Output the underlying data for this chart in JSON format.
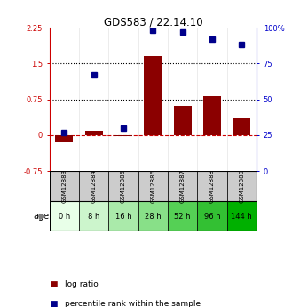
{
  "title": "GDS583 / 22.14.10",
  "samples": [
    "GSM12883",
    "GSM12884",
    "GSM12885",
    "GSM12886",
    "GSM12887",
    "GSM12888",
    "GSM12889"
  ],
  "ages": [
    "0 h",
    "8 h",
    "16 h",
    "28 h",
    "52 h",
    "96 h",
    "144 h"
  ],
  "log_ratio": [
    -0.15,
    0.1,
    -0.02,
    1.65,
    0.62,
    0.82,
    0.35
  ],
  "percentile_rank": [
    27,
    67,
    30,
    98,
    97,
    92,
    88
  ],
  "bar_color": "#8B0000",
  "dot_color": "#00008B",
  "ylim_left": [
    -0.75,
    2.25
  ],
  "ylim_right": [
    0,
    100
  ],
  "yticks_left": [
    -0.75,
    0,
    0.75,
    1.5,
    2.25
  ],
  "ytick_labels_left": [
    "-0.75",
    "0",
    "0.75",
    "1.5",
    "2.25"
  ],
  "yticks_right": [
    0,
    25,
    50,
    75,
    100
  ],
  "ytick_labels_right": [
    "0",
    "25",
    "50",
    "75",
    "100%"
  ],
  "hlines": [
    0.75,
    1.5
  ],
  "age_colors": [
    "#e8ffe8",
    "#ccf5cc",
    "#aaeaaa",
    "#88e088",
    "#55d055",
    "#33c033",
    "#00b000"
  ],
  "bg_color": "#ffffff",
  "sample_bg": "#cccccc",
  "border_color": "#000000",
  "zero_line_color": "#cc0000",
  "left_axis_color": "#cc0000",
  "right_axis_color": "#0000cc",
  "hline_color": "#000000",
  "age_label": "age",
  "legend_items": [
    "log ratio",
    "percentile rank within the sample"
  ],
  "legend_colors": [
    "#8B0000",
    "#00008B"
  ]
}
